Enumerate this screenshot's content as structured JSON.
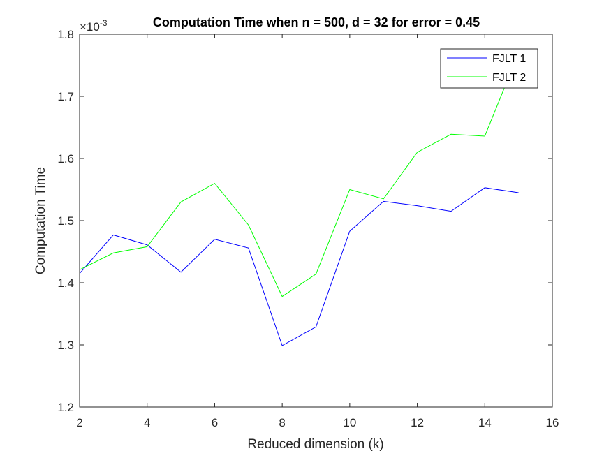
{
  "chart_data": {
    "type": "line",
    "title": "Computation Time when n = 500, d = 32 for error = 0.45",
    "xlabel": "Reduced dimension (k)",
    "ylabel": "Computation Time",
    "y_exponent_label": "×10",
    "y_exponent_power": "-3",
    "xlim": [
      2,
      16
    ],
    "ylim": [
      1.2,
      1.8
    ],
    "xticks": [
      2,
      4,
      6,
      8,
      10,
      12,
      14,
      16
    ],
    "yticks": [
      1.2,
      1.3,
      1.4,
      1.5,
      1.6,
      1.7,
      1.8
    ],
    "x": [
      2,
      3,
      4,
      5,
      6,
      7,
      8,
      9,
      10,
      11,
      12,
      13,
      14,
      15
    ],
    "series": [
      {
        "name": "FJLT 1",
        "color": "#0000ff",
        "values": [
          1.415,
          1.477,
          1.461,
          1.417,
          1.47,
          1.456,
          1.299,
          1.329,
          1.483,
          1.531,
          1.524,
          1.515,
          1.553,
          1.545
        ]
      },
      {
        "name": "FJLT 2",
        "color": "#00ff00",
        "values": [
          1.421,
          1.448,
          1.458,
          1.53,
          1.56,
          1.493,
          1.378,
          1.414,
          1.55,
          1.535,
          1.61,
          1.639,
          1.636,
          1.77
        ]
      }
    ],
    "grid": false,
    "legend_position": "top-right"
  }
}
